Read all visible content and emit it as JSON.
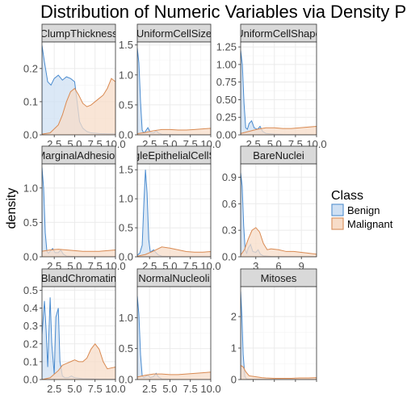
{
  "chart_data": {
    "type": "area",
    "title": "Distribution of Numeric Variables via Density Plots",
    "xlabel": "",
    "ylabel": "density",
    "grid": true,
    "legend": {
      "title": "Class",
      "placement": "right",
      "entries": [
        {
          "name": "Benign",
          "fill": "#cfe0f3",
          "stroke": "#4a8bcf"
        },
        {
          "name": "Malignant",
          "fill": "#f7dcc8",
          "stroke": "#d98a52"
        }
      ]
    },
    "panels": [
      {
        "name": "ClumpThickness",
        "xlim": [
          1,
          10
        ],
        "ylim": [
          0,
          0.28
        ],
        "xticks": [
          2.5,
          5.0,
          7.5,
          10.0
        ],
        "xtick_labels": [
          "2.5",
          "5.0",
          "7.5",
          "10.0"
        ],
        "yticks": [
          0.0,
          0.1,
          0.2
        ],
        "ytick_labels": [
          "0.0",
          "0.1",
          "0.2"
        ],
        "series": [
          {
            "name": "Benign",
            "x": [
              1,
              1.3,
              1.7,
              2.1,
              2.5,
              3.0,
              3.5,
              4.0,
              4.5,
              5.0,
              5.3,
              5.6,
              6.0,
              6.5,
              7,
              8,
              9,
              10
            ],
            "y": [
              0.27,
              0.22,
              0.16,
              0.15,
              0.17,
              0.18,
              0.165,
              0.175,
              0.17,
              0.16,
              0.1,
              0.04,
              0.02,
              0.01,
              0.006,
              0.004,
              0.003,
              0.003
            ]
          },
          {
            "name": "Malignant",
            "x": [
              1,
              2,
              3,
              3.5,
              4.0,
              4.5,
              5.0,
              5.5,
              6.0,
              6.5,
              7.0,
              7.5,
              8.0,
              8.5,
              9.0,
              9.5,
              10
            ],
            "y": [
              0.002,
              0.006,
              0.03,
              0.06,
              0.1,
              0.13,
              0.14,
              0.12,
              0.095,
              0.085,
              0.09,
              0.1,
              0.11,
              0.12,
              0.14,
              0.17,
              0.16
            ]
          }
        ]
      },
      {
        "name": "UniformCellSize",
        "xlim": [
          1,
          10
        ],
        "ylim": [
          0,
          1.55
        ],
        "xticks": [
          2.5,
          5.0,
          7.5,
          10.0
        ],
        "xtick_labels": [
          "2.5",
          "5.0",
          "7.5",
          "10.0"
        ],
        "yticks": [
          0.0,
          0.5,
          1.0,
          1.5
        ],
        "ytick_labels": [
          "0.0",
          "0.5",
          "1.0",
          "1.5"
        ],
        "series": [
          {
            "name": "Benign",
            "x": [
              1,
              1.2,
              1.4,
              1.6,
              1.8,
              2.0,
              2.3,
              2.6,
              3.0,
              3.3,
              3.6,
              4.0,
              5,
              6,
              8,
              10
            ],
            "y": [
              1.45,
              1.2,
              0.55,
              0.08,
              0.03,
              0.06,
              0.12,
              0.04,
              0.03,
              0.07,
              0.03,
              0.01,
              0.005,
              0.003,
              0.003,
              0.002
            ]
          },
          {
            "name": "Malignant",
            "x": [
              1,
              2,
              3,
              4,
              5,
              6,
              7,
              8,
              9,
              10
            ],
            "y": [
              0.02,
              0.04,
              0.07,
              0.09,
              0.09,
              0.08,
              0.08,
              0.09,
              0.1,
              0.11
            ]
          }
        ]
      },
      {
        "name": "UniformCellShape",
        "xlim": [
          1,
          10
        ],
        "ylim": [
          0,
          1.32
        ],
        "xticks": [
          2.5,
          5.0,
          7.5,
          10.0
        ],
        "xtick_labels": [
          "2.5",
          "5.0",
          "7.5",
          "10.0"
        ],
        "yticks": [
          0.0,
          0.25,
          0.5,
          0.75,
          1.0,
          1.25
        ],
        "ytick_labels": [
          "0.00",
          "0.25",
          "0.50",
          "0.75",
          "1.00",
          "1.25"
        ],
        "series": [
          {
            "name": "Benign",
            "x": [
              1,
              1.2,
              1.4,
              1.6,
              1.8,
              2.0,
              2.3,
              2.6,
              3.0,
              3.3,
              3.6,
              4.0,
              5,
              6,
              8,
              10
            ],
            "y": [
              1.2,
              1.0,
              0.45,
              0.1,
              0.08,
              0.16,
              0.2,
              0.1,
              0.08,
              0.12,
              0.05,
              0.02,
              0.01,
              0.005,
              0.003,
              0.002
            ]
          },
          {
            "name": "Malignant",
            "x": [
              1,
              2,
              3,
              4,
              5,
              6,
              7,
              8,
              9,
              10
            ],
            "y": [
              0.02,
              0.05,
              0.08,
              0.1,
              0.1,
              0.09,
              0.09,
              0.1,
              0.11,
              0.12
            ]
          }
        ]
      },
      {
        "name": "MarginalAdhesion",
        "xlim": [
          1,
          10
        ],
        "ylim": [
          0,
          1.35
        ],
        "xticks": [
          2.5,
          5.0,
          7.5,
          10.0
        ],
        "xtick_labels": [
          "2.5",
          "5.0",
          "7.5",
          "10.0"
        ],
        "yticks": [
          0.0,
          0.5,
          1.0
        ],
        "ytick_labels": [
          "0.0",
          "0.5",
          "1.0"
        ],
        "series": [
          {
            "name": "Benign",
            "x": [
              1,
              1.2,
              1.4,
              1.6,
              1.8,
              2.0,
              2.3,
              2.6,
              3.0,
              3.3,
              3.6,
              4.0,
              5,
              6,
              8,
              10
            ],
            "y": [
              1.3,
              1.0,
              0.35,
              0.08,
              0.05,
              0.08,
              0.12,
              0.06,
              0.06,
              0.1,
              0.04,
              0.01,
              0.005,
              0.003,
              0.002,
              0.002
            ]
          },
          {
            "name": "Malignant",
            "x": [
              1,
              2,
              3,
              4,
              5,
              6,
              7,
              8,
              9,
              10
            ],
            "y": [
              0.08,
              0.1,
              0.11,
              0.1,
              0.09,
              0.08,
              0.08,
              0.08,
              0.09,
              0.1
            ]
          }
        ]
      },
      {
        "name": "SingleEpithelialCellSize",
        "xlim": [
          1,
          10
        ],
        "ylim": [
          0,
          1.6
        ],
        "xticks": [
          2.5,
          5.0,
          7.5,
          10.0
        ],
        "xtick_labels": [
          "2.5",
          "5.0",
          "7.5",
          "10.0"
        ],
        "yticks": [
          0.0,
          0.5,
          1.0,
          1.5
        ],
        "ytick_labels": [
          "0.0",
          "0.5",
          "1.0",
          "1.5"
        ],
        "series": [
          {
            "name": "Benign",
            "x": [
              1,
              1.3,
              1.6,
              1.8,
              2.0,
              2.2,
              2.4,
              2.6,
              2.8,
              3.0,
              3.3,
              3.6,
              4.0,
              5,
              6,
              8,
              10
            ],
            "y": [
              0.03,
              0.06,
              0.2,
              0.9,
              1.5,
              1.1,
              0.3,
              0.08,
              0.1,
              0.12,
              0.07,
              0.03,
              0.01,
              0.005,
              0.003,
              0.002,
              0.002
            ]
          },
          {
            "name": "Malignant",
            "x": [
              1,
              2,
              3,
              4,
              5,
              6,
              7,
              8,
              9,
              10
            ],
            "y": [
              0.01,
              0.04,
              0.1,
              0.17,
              0.15,
              0.12,
              0.09,
              0.08,
              0.08,
              0.09
            ]
          }
        ]
      },
      {
        "name": "BareNuclei",
        "xlim": [
          1,
          11
        ],
        "ylim": [
          0,
          1.05
        ],
        "xticks": [
          3,
          6,
          9
        ],
        "xtick_labels": [
          "3",
          "6",
          "9"
        ],
        "yticks": [
          0.0,
          0.3,
          0.6,
          0.9
        ],
        "ytick_labels": [
          "0.0",
          "0.3",
          "0.6",
          "0.9"
        ],
        "series": [
          {
            "name": "Benign",
            "x": [
              1,
              1.2,
              1.4,
              1.6,
              1.8,
              2.0,
              2.3,
              2.6,
              3.0,
              3.3,
              3.6,
              4.0,
              5,
              6,
              8,
              11
            ],
            "y": [
              0.95,
              0.8,
              0.35,
              0.08,
              0.04,
              0.1,
              0.14,
              0.06,
              0.05,
              0.08,
              0.03,
              0.01,
              0.005,
              0.003,
              0.002,
              0.002
            ]
          },
          {
            "name": "Malignant",
            "x": [
              1,
              1.5,
              2,
              2.5,
              3.0,
              3.5,
              4.0,
              4.5,
              5,
              6,
              7,
              8,
              9,
              10,
              11
            ],
            "y": [
              0.02,
              0.08,
              0.2,
              0.3,
              0.33,
              0.28,
              0.15,
              0.08,
              0.09,
              0.08,
              0.06,
              0.06,
              0.05,
              0.04,
              0.03
            ]
          }
        ]
      },
      {
        "name": "BlandChromatin",
        "xlim": [
          1,
          10
        ],
        "ylim": [
          0,
          0.52
        ],
        "xticks": [
          2.5,
          5.0,
          7.5,
          10.0
        ],
        "xtick_labels": [
          "2.5",
          "5.0",
          "7.5",
          "10.0"
        ],
        "yticks": [
          0.0,
          0.1,
          0.2,
          0.3,
          0.4,
          0.5
        ],
        "ytick_labels": [
          "0.0",
          "0.1",
          "0.2",
          "0.3",
          "0.4",
          "0.5"
        ],
        "series": [
          {
            "name": "Benign",
            "x": [
              1,
              1.3,
              1.5,
              1.7,
              2.0,
              2.2,
              2.5,
              2.7,
              3.0,
              3.2,
              3.5,
              3.8,
              4.2,
              4.6,
              5,
              6,
              8,
              10
            ],
            "y": [
              0.25,
              0.44,
              0.28,
              0.07,
              0.46,
              0.2,
              0.03,
              0.35,
              0.4,
              0.1,
              0.02,
              0.01,
              0.01,
              0.02,
              0.01,
              0.005,
              0.003,
              0.002
            ]
          },
          {
            "name": "Malignant",
            "x": [
              1,
              2,
              3,
              3.5,
              4,
              4.5,
              5,
              5.5,
              6,
              6.5,
              7,
              7.5,
              8,
              8.5,
              9,
              10
            ],
            "y": [
              0.0,
              0.01,
              0.05,
              0.08,
              0.09,
              0.1,
              0.11,
              0.1,
              0.1,
              0.12,
              0.17,
              0.2,
              0.17,
              0.1,
              0.06,
              0.07
            ]
          }
        ]
      },
      {
        "name": "NormalNucleoli",
        "xlim": [
          1,
          10
        ],
        "ylim": [
          0,
          1.5
        ],
        "xticks": [
          2.5,
          5.0,
          7.5,
          10.0
        ],
        "xtick_labels": [
          "2.5",
          "5.0",
          "7.5",
          "10.0"
        ],
        "yticks": [
          0.0,
          0.5,
          1.0
        ],
        "ytick_labels": [
          "0.0",
          "0.5",
          "1.0"
        ],
        "series": [
          {
            "name": "Benign",
            "x": [
              1,
              1.2,
              1.4,
              1.6,
              1.8,
              2.0,
              2.3,
              2.6,
              3.0,
              3.3,
              3.6,
              4.0,
              5,
              6,
              8,
              10
            ],
            "y": [
              1.35,
              1.05,
              0.4,
              0.06,
              0.03,
              0.05,
              0.07,
              0.03,
              0.05,
              0.1,
              0.04,
              0.01,
              0.005,
              0.003,
              0.002,
              0.002
            ]
          },
          {
            "name": "Malignant",
            "x": [
              1,
              2,
              3,
              4,
              5,
              6,
              7,
              8,
              9,
              10
            ],
            "y": [
              0.04,
              0.07,
              0.09,
              0.09,
              0.08,
              0.08,
              0.09,
              0.1,
              0.11,
              0.12
            ]
          }
        ]
      },
      {
        "name": "Mitoses",
        "xlim": [
          1,
          10
        ],
        "ylim": [
          0,
          2.95
        ],
        "xticks": [
          2.5,
          5.0,
          7.5,
          10.0
        ],
        "xtick_labels": [
          "",
          "",
          "",
          ""
        ],
        "yticks": [
          0,
          1,
          2
        ],
        "ytick_labels": [
          "0",
          "1",
          "2"
        ],
        "series": [
          {
            "name": "Benign",
            "x": [
              1,
              1.15,
              1.3,
              1.5,
              1.7,
              2.0,
              2.5,
              3,
              5,
              7,
              10
            ],
            "y": [
              2.8,
              2.0,
              0.8,
              0.1,
              0.02,
              0.01,
              0.01,
              0.008,
              0.005,
              0.003,
              0.002
            ]
          },
          {
            "name": "Malignant",
            "x": [
              1,
              1.3,
              1.6,
              2.0,
              2.5,
              3.0,
              3.5,
              4,
              5,
              6,
              7,
              8,
              9,
              10
            ],
            "y": [
              0.45,
              0.4,
              0.25,
              0.12,
              0.1,
              0.08,
              0.06,
              0.05,
              0.04,
              0.04,
              0.04,
              0.05,
              0.05,
              0.06
            ]
          }
        ]
      }
    ]
  }
}
